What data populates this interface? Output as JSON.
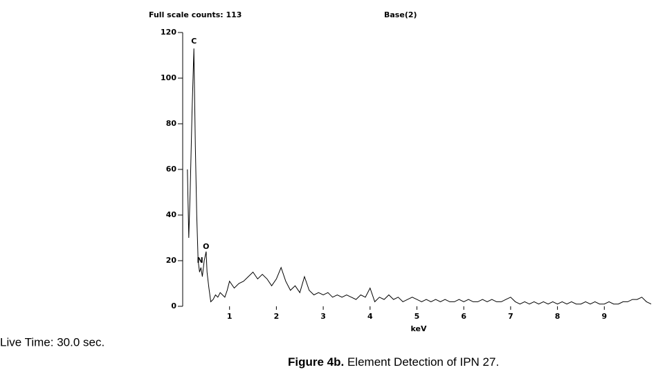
{
  "chart_data": {
    "type": "line",
    "title": "Full scale counts: 113",
    "subtitle": "Base(2)",
    "x_label": "keV",
    "note": "Live Time: 30.0 sec.",
    "caption_bold": "Figure 4b.",
    "caption": "Element Detection of IPN 27.",
    "xlim": [
      0,
      10
    ],
    "ylim": [
      0,
      120
    ],
    "xticks": [
      1,
      2,
      3,
      4,
      5,
      6,
      7,
      8,
      9
    ],
    "yticks": [
      0,
      20,
      40,
      60,
      80,
      100,
      120
    ],
    "peak_labels": [
      {
        "label": "C",
        "x": 0.24,
        "y": 116
      },
      {
        "label": "N",
        "x": 0.37,
        "y": 20
      },
      {
        "label": "O",
        "x": 0.5,
        "y": 26
      }
    ],
    "series": [
      {
        "name": "Base(2)",
        "color": "#000000",
        "x": [
          0.1,
          0.13,
          0.16,
          0.2,
          0.24,
          0.27,
          0.3,
          0.33,
          0.36,
          0.39,
          0.42,
          0.46,
          0.5,
          0.52,
          0.56,
          0.6,
          0.65,
          0.7,
          0.75,
          0.8,
          0.85,
          0.9,
          0.95,
          1.0,
          1.1,
          1.2,
          1.3,
          1.4,
          1.5,
          1.6,
          1.7,
          1.8,
          1.9,
          2.0,
          2.1,
          2.2,
          2.3,
          2.4,
          2.5,
          2.6,
          2.7,
          2.8,
          2.9,
          3.0,
          3.1,
          3.2,
          3.3,
          3.4,
          3.5,
          3.6,
          3.7,
          3.8,
          3.9,
          4.0,
          4.1,
          4.2,
          4.3,
          4.4,
          4.5,
          4.6,
          4.7,
          4.8,
          4.9,
          5.0,
          5.1,
          5.2,
          5.3,
          5.4,
          5.5,
          5.6,
          5.7,
          5.8,
          5.9,
          6.0,
          6.1,
          6.2,
          6.3,
          6.4,
          6.5,
          6.6,
          6.7,
          6.8,
          6.9,
          7.0,
          7.1,
          7.2,
          7.3,
          7.4,
          7.5,
          7.6,
          7.7,
          7.8,
          7.9,
          8.0,
          8.1,
          8.2,
          8.3,
          8.4,
          8.5,
          8.6,
          8.7,
          8.8,
          8.9,
          9.0,
          9.1,
          9.2,
          9.3,
          9.4,
          9.5,
          9.6,
          9.7,
          9.8,
          9.9,
          10.0
        ],
        "values": [
          60,
          30,
          50,
          85,
          113,
          70,
          40,
          20,
          15,
          17,
          13,
          20,
          24,
          15,
          8,
          2,
          3,
          5,
          4,
          6,
          5,
          4,
          7,
          11,
          8,
          10,
          11,
          13,
          15,
          12,
          14,
          12,
          9,
          12,
          17,
          11,
          7,
          9,
          6,
          13,
          7,
          5,
          6,
          5,
          6,
          4,
          5,
          4,
          5,
          4,
          3,
          5,
          4,
          8,
          2,
          4,
          3,
          5,
          3,
          4,
          2,
          3,
          4,
          3,
          2,
          3,
          2,
          3,
          2,
          3,
          2,
          2,
          3,
          2,
          3,
          2,
          2,
          3,
          2,
          3,
          2,
          2,
          3,
          4,
          2,
          1,
          2,
          1,
          2,
          1,
          2,
          1,
          2,
          1,
          2,
          1,
          2,
          1,
          1,
          2,
          1,
          2,
          1,
          1,
          2,
          1,
          1,
          2,
          2,
          3,
          3,
          4,
          2,
          1
        ]
      }
    ]
  }
}
